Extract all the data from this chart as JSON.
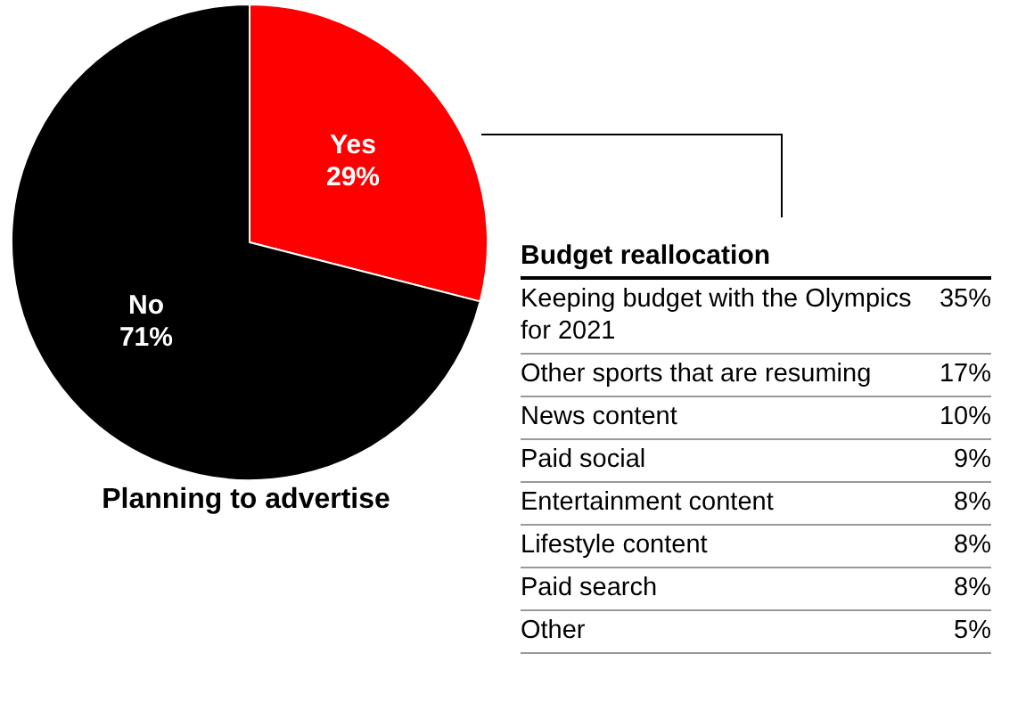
{
  "chart_data": [
    {
      "type": "pie",
      "title": "Planning to advertise",
      "categories": [
        "Yes",
        "No"
      ],
      "values": [
        29,
        71
      ],
      "colors": [
        "#ff0000",
        "#000000"
      ],
      "value_labels": [
        "29%",
        "71%"
      ],
      "legend": false
    },
    {
      "type": "other",
      "title": "Budget reallocation",
      "categories": [
        "Keeping budget with the Olympics for 2021",
        "Other sports that are resuming",
        "News content",
        "Paid social",
        "Entertainment content",
        "Lifestyle content",
        "Paid search",
        "Other"
      ],
      "value_labels": [
        "35%",
        "17%",
        "10%",
        "9%",
        "8%",
        "8%",
        "8%",
        "5%"
      ]
    }
  ]
}
